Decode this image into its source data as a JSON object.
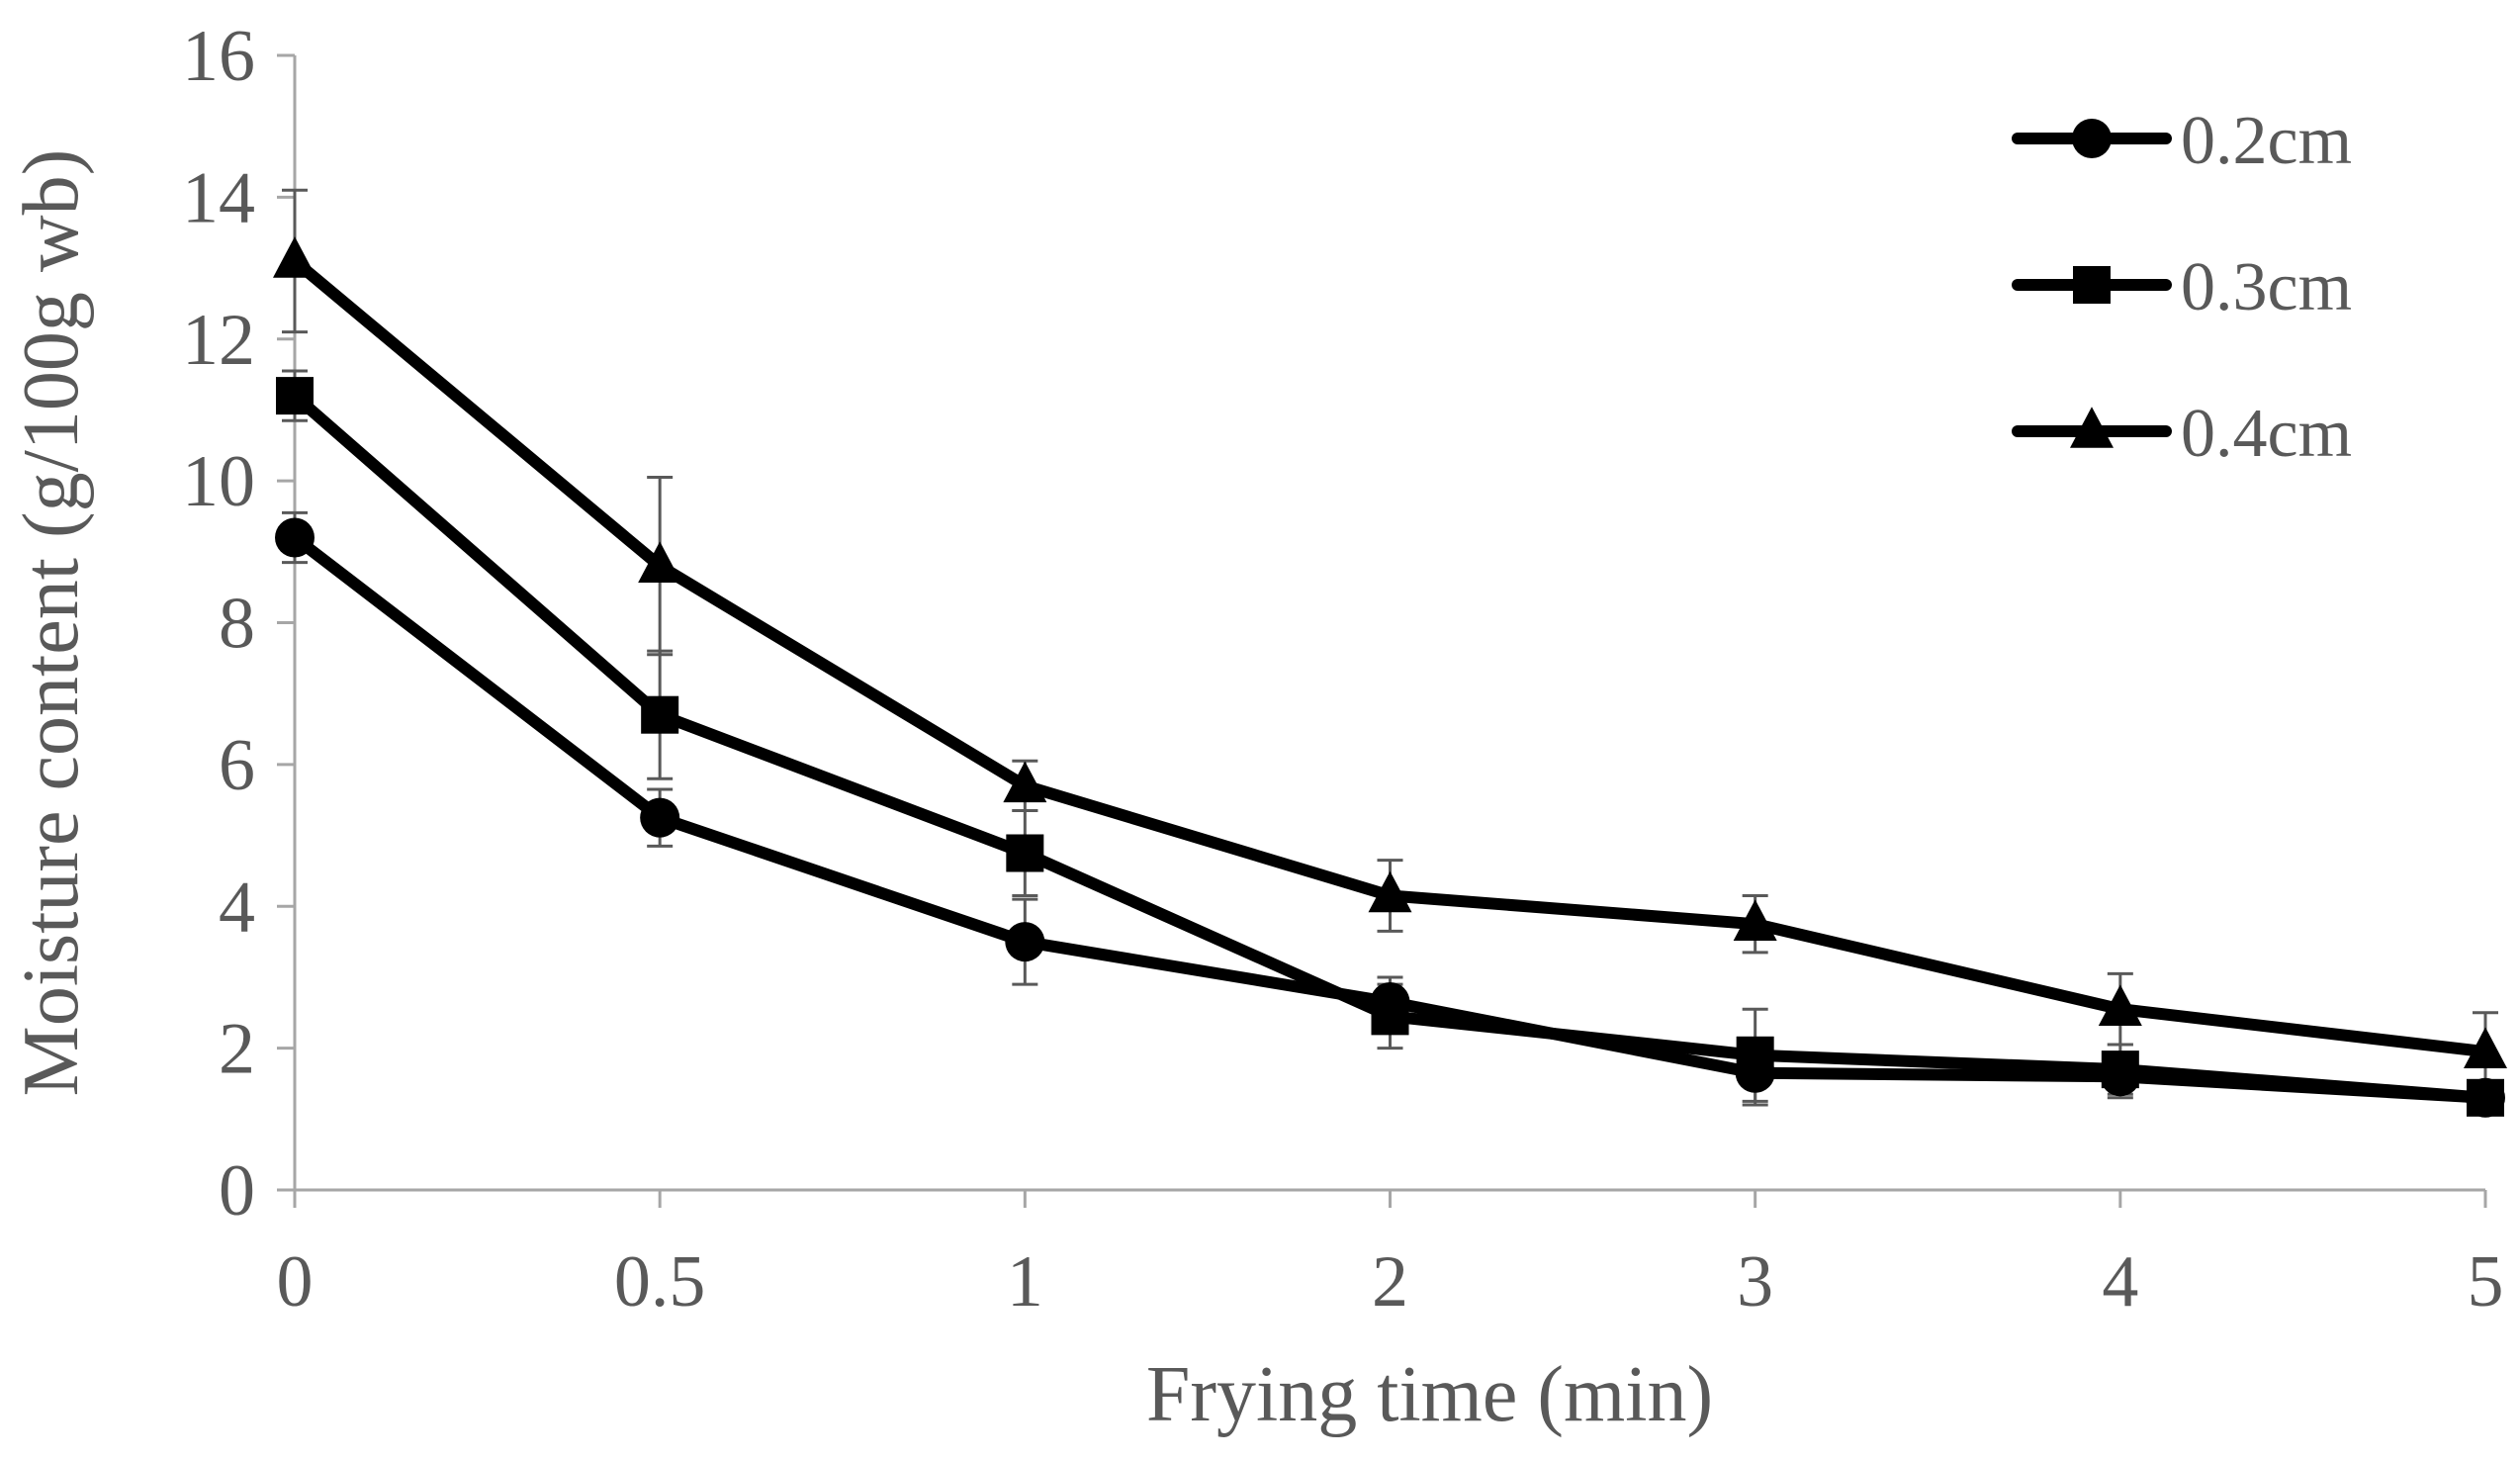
{
  "chart_data": {
    "type": "line",
    "title": "",
    "xlabel": "Frying time (min)",
    "ylabel": "Moisture content (g/100g wb)",
    "categories": [
      "0",
      "0.5",
      "1",
      "2",
      "3",
      "4",
      "5"
    ],
    "ylim": [
      0,
      16
    ],
    "yticks": [
      "0",
      "2",
      "4",
      "6",
      "8",
      "10",
      "12",
      "14",
      "16"
    ],
    "grid": false,
    "legend_position": "top-right",
    "series": [
      {
        "name": "0.2cm",
        "marker": "circle",
        "values": [
          9.2,
          5.25,
          3.5,
          2.65,
          1.65,
          1.6,
          1.3
        ],
        "errors": [
          0.35,
          0.4,
          0.6,
          0.35,
          0.45,
          0.3,
          0.2
        ]
      },
      {
        "name": "0.3cm",
        "marker": "square",
        "values": [
          11.2,
          6.7,
          4.75,
          2.45,
          1.9,
          1.7,
          1.3
        ],
        "errors": [
          0.35,
          0.9,
          0.6,
          0.45,
          0.65,
          0.35,
          0.2
        ]
      },
      {
        "name": "0.4cm",
        "marker": "triangle",
        "values": [
          13.1,
          8.8,
          5.7,
          4.15,
          3.75,
          2.55,
          1.95
        ],
        "errors": [
          1.0,
          1.25,
          0.35,
          0.5,
          0.4,
          0.5,
          0.55
        ]
      }
    ],
    "colors": {
      "series": "#000000",
      "axis": "#a6a6a6",
      "error_bar": "#595959",
      "text": "#595959"
    }
  }
}
